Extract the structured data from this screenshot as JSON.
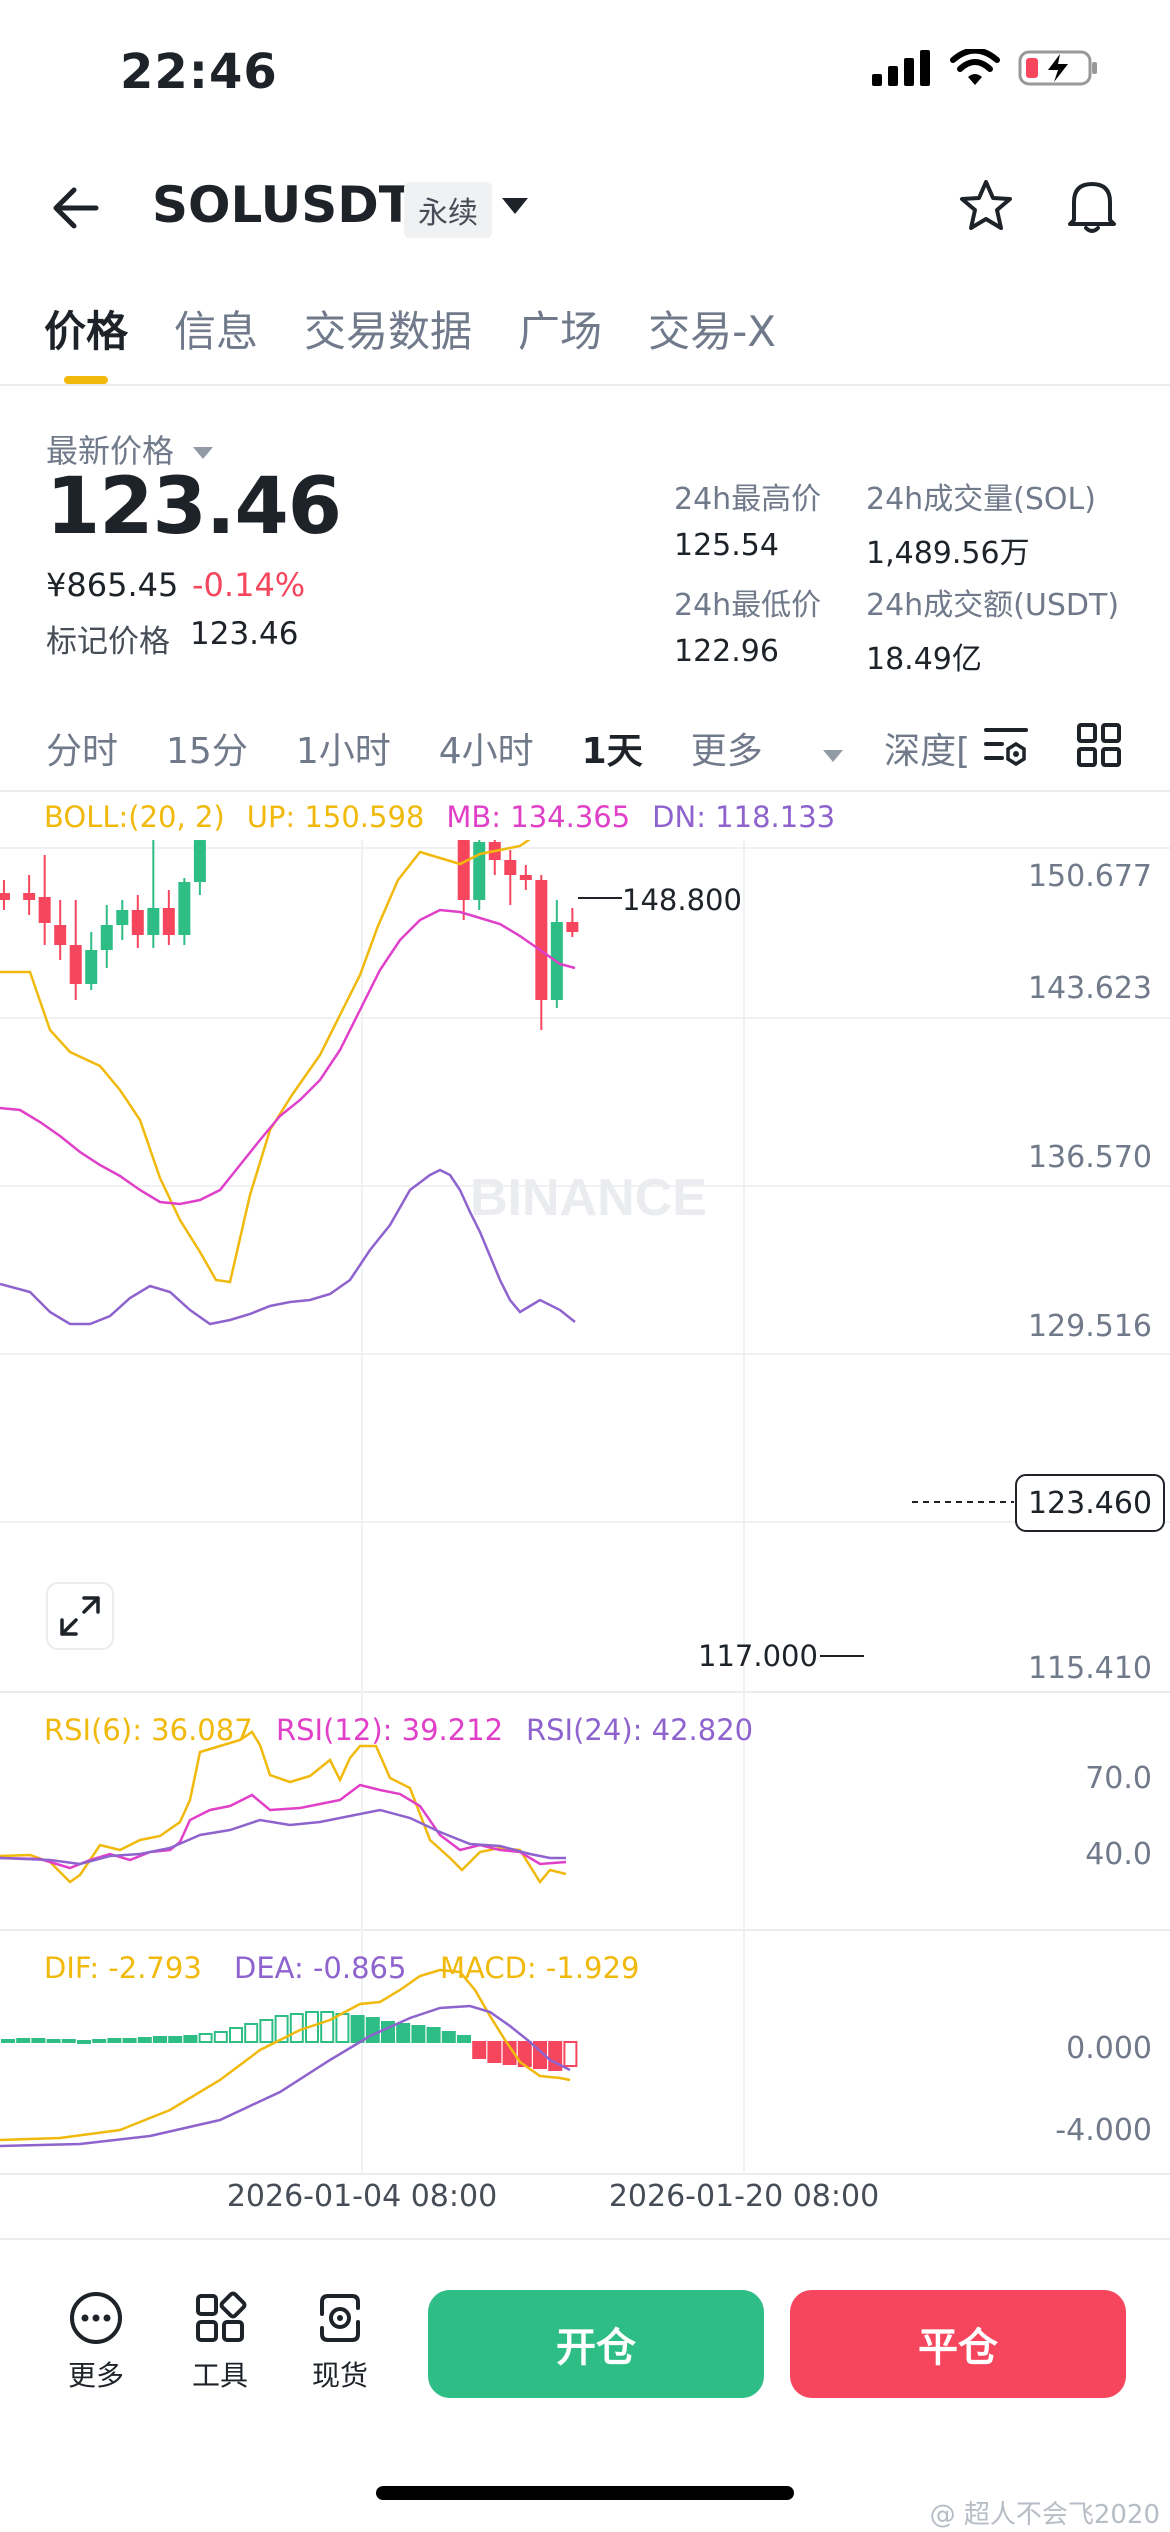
{
  "status": {
    "time": "22:46"
  },
  "header": {
    "symbol": "SOLUSDT",
    "contract_type": "永续"
  },
  "tabs": [
    "价格",
    "信息",
    "交易数据",
    "广场",
    "交易-X"
  ],
  "price": {
    "latest_label": "最新价格",
    "latest": "123.46",
    "cny": "¥865.45",
    "change": "-0.14%",
    "mark_label": "标记价格",
    "mark": "123.46"
  },
  "stats": {
    "high_label": "24h最高价",
    "high": "125.54",
    "vol_label": "24h成交量(SOL)",
    "vol": "1,489.56万",
    "low_label": "24h最低价",
    "low": "122.96",
    "amount_label": "24h成交额(USDT)",
    "amount": "18.49亿"
  },
  "intervals": [
    "分时",
    "15分",
    "1小时",
    "4小时",
    "1天",
    "更多",
    "深度["
  ],
  "boll": {
    "label": "BOLL:(20, 2)",
    "up": "UP: 150.598",
    "mb": "MB: 134.365",
    "dn": "DN: 118.133"
  },
  "price_axis": [
    "150.677",
    "143.623",
    "136.570",
    "129.516",
    "115.410"
  ],
  "current_price_tag": "123.460",
  "high_annotation": "148.800",
  "low_annotation": "117.000",
  "watermark_logo": "BINANCE",
  "rsi": {
    "r6": "RSI(6): 36.087",
    "r12": "RSI(12): 39.212",
    "r24": "RSI(24): 42.820",
    "axis": [
      "70.0",
      "40.0"
    ]
  },
  "macd": {
    "dif": "DIF: -2.793",
    "dea": "DEA: -0.865",
    "macd": "MACD: -1.929",
    "axis": [
      "0.000",
      "-4.000"
    ]
  },
  "dates": [
    "2026-01-04 08:00",
    "2026-01-20 08:00"
  ],
  "bottom_bar": {
    "more": "更多",
    "tools": "工具",
    "spot": "现货",
    "open": "开仓",
    "close": "平仓"
  },
  "footer_watermark": "@ 超人不会飞2020",
  "colors": {
    "up": "#2ebd85",
    "down": "#f6465d",
    "boll_up": "#f0b90b",
    "boll_mb": "#e040c8",
    "boll_dn": "#8e63ce",
    "accent": "#f0b90b"
  }
}
